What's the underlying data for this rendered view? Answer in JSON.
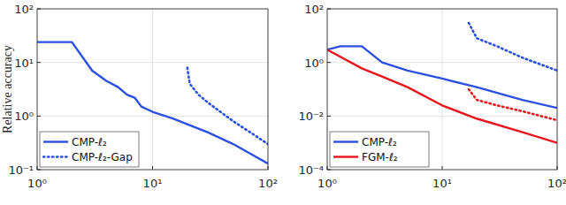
{
  "chart_data": [
    {
      "type": "line",
      "y_label": "Relative accuracy",
      "log": true,
      "grid": true,
      "legend": "lower left",
      "xlim": [
        1,
        100
      ],
      "ylim": [
        0.1,
        100
      ],
      "xticks": [
        {
          "value": 1,
          "label": "10⁰"
        },
        {
          "value": 10,
          "label": "10¹"
        },
        {
          "value": 100,
          "label": "10²"
        }
      ],
      "yticks": [
        {
          "value": 0.1,
          "label": "10⁻¹"
        },
        {
          "value": 1,
          "label": "10⁰"
        },
        {
          "value": 10,
          "label": "10¹"
        },
        {
          "value": 100,
          "label": "10²"
        }
      ],
      "series": [
        {
          "name": "CMP-ℓ₂",
          "color": "#2b4fe0",
          "line_style": "solid",
          "x": [
            1,
            2,
            3,
            4,
            5,
            6,
            7,
            8,
            10,
            15,
            20,
            30,
            50,
            70,
            100
          ],
          "values": [
            24,
            24,
            7,
            4.5,
            3.5,
            2.5,
            2.2,
            1.5,
            1.2,
            0.9,
            0.7,
            0.5,
            0.3,
            0.2,
            0.13
          ]
        },
        {
          "name": "CMP-ℓ₂-Gap",
          "color": "#2b4fe0",
          "line_style": "dotted",
          "x": [
            20,
            21,
            25,
            30,
            50,
            70,
            100
          ],
          "values": [
            8,
            4,
            2.5,
            1.8,
            0.8,
            0.5,
            0.3
          ]
        }
      ]
    },
    {
      "type": "line",
      "log": true,
      "grid": true,
      "legend": "lower left",
      "xlim": [
        1,
        100
      ],
      "ylim": [
        0.0001,
        100
      ],
      "xticks": [
        {
          "value": 1,
          "label": "10⁰"
        },
        {
          "value": 10,
          "label": "10¹"
        },
        {
          "value": 100,
          "label": "10²"
        }
      ],
      "yticks": [
        {
          "value": 0.0001,
          "label": "10⁻⁴"
        },
        {
          "value": 0.01,
          "label": "10⁻²"
        },
        {
          "value": 1,
          "label": "10⁰"
        },
        {
          "value": 100,
          "label": "10²"
        }
      ],
      "series": [
        {
          "name": "CMP-ℓ₂",
          "color": "#2b4fe0",
          "line_style": "solid",
          "x": [
            1,
            1.3,
            2,
            3,
            5,
            10,
            20,
            50,
            100
          ],
          "values": [
            3,
            4,
            4,
            1,
            0.5,
            0.25,
            0.12,
            0.04,
            0.02
          ]
        },
        {
          "name": "FGM-ℓ₂",
          "color": "#e8141c",
          "line_style": "solid",
          "x": [
            1,
            2,
            3,
            5,
            10,
            20,
            50,
            100
          ],
          "values": [
            3,
            0.6,
            0.3,
            0.12,
            0.025,
            0.008,
            0.0025,
            0.001
          ]
        },
        {
          "color": "#2b4fe0",
          "line_style": "dotted",
          "x": [
            17,
            20,
            30,
            50,
            100
          ],
          "values": [
            30,
            8,
            4,
            1.5,
            0.5
          ]
        },
        {
          "color": "#e8141c",
          "line_style": "dotted",
          "x": [
            17,
            20,
            30,
            50,
            100
          ],
          "values": [
            0.1,
            0.04,
            0.025,
            0.015,
            0.007
          ]
        }
      ]
    }
  ]
}
